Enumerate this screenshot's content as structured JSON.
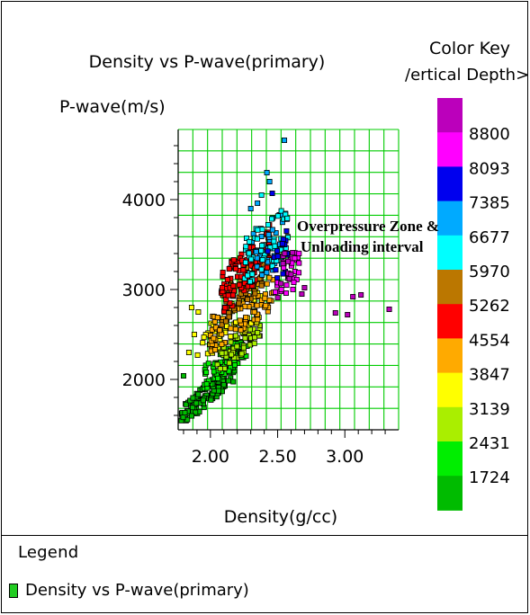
{
  "chart_data": {
    "type": "scatter",
    "title": "Density vs P-wave(primary)",
    "xlabel": "Density(g/cc)",
    "ylabel": "P-wave(m/s)",
    "xlim": [
      1.76,
      3.4
    ],
    "ylim": [
      1440,
      4780
    ],
    "x_ticks": [
      "2.00",
      "2.50",
      "3.00"
    ],
    "x_tick_values": [
      2.0,
      2.5,
      3.0
    ],
    "y_ticks": [
      "2000",
      "3000",
      "4000"
    ],
    "y_tick_values": [
      2000,
      3000,
      4000
    ],
    "grid": true,
    "grid_color": "#00cc00",
    "color_key": {
      "title": "Color Key",
      "subtitle": "/ertical Depth>(f",
      "labels": [
        "8800",
        "8093",
        "7385",
        "6677",
        "5970",
        "5262",
        "4554",
        "3847",
        "3139",
        "2431",
        "1724"
      ],
      "colors": [
        "#bb00bb",
        "#ff00ff",
        "#0000ee",
        "#00aaff",
        "#00ffff",
        "#bb7700",
        "#ff0000",
        "#ffaa00",
        "#ffff00",
        "#aaee00",
        "#00ee00",
        "#00bb00"
      ]
    },
    "annotation": {
      "line1": "Overpressure Zone &",
      "line2": "Unloading interval"
    },
    "clusters": [
      {
        "color": "#00bb00",
        "n": 130,
        "x_range": [
          1.78,
          2.18
        ],
        "y_base": 1580,
        "slope": 1300,
        "spread": 120
      },
      {
        "color": "#00ee00",
        "n": 80,
        "x_range": [
          1.95,
          2.3
        ],
        "y_base": 2000,
        "slope": 1200,
        "spread": 140
      },
      {
        "color": "#aaee00",
        "n": 60,
        "x_range": [
          2.05,
          2.38
        ],
        "y_base": 2200,
        "slope": 1250,
        "spread": 150
      },
      {
        "color": "#ffff00",
        "n": 65,
        "x_range": [
          1.9,
          2.38
        ],
        "y_base": 2350,
        "slope": 1100,
        "spread": 220
      },
      {
        "color": "#ffaa00",
        "n": 85,
        "x_range": [
          2.0,
          2.48
        ],
        "y_base": 2500,
        "slope": 1100,
        "spread": 220
      },
      {
        "color": "#bb7700",
        "n": 55,
        "x_range": [
          2.08,
          2.4
        ],
        "y_base": 2800,
        "slope": 1400,
        "spread": 220
      },
      {
        "color": "#ff0000",
        "n": 110,
        "x_range": [
          2.08,
          2.45
        ],
        "y_base": 2950,
        "slope": 1500,
        "spread": 260
      },
      {
        "color": "#00aaff",
        "n": 35,
        "x_range": [
          2.3,
          2.56
        ],
        "y_base": 3350,
        "slope": 1000,
        "spread": 300
      },
      {
        "color": "#00ffff",
        "n": 60,
        "x_range": [
          2.25,
          2.58
        ],
        "y_base": 3300,
        "slope": 1100,
        "spread": 280
      },
      {
        "color": "#0000ee",
        "n": 18,
        "x_range": [
          2.4,
          2.6
        ],
        "y_base": 3300,
        "slope": 900,
        "spread": 260
      },
      {
        "color": "#ff00ff",
        "n": 30,
        "x_range": [
          2.48,
          2.66
        ],
        "y_base": 3050,
        "slope": 1200,
        "spread": 220
      },
      {
        "color": "#bb00bb",
        "n": 10,
        "x_range": [
          2.5,
          2.64
        ],
        "y_base": 3150,
        "slope": 1000,
        "spread": 250
      }
    ],
    "points": [
      {
        "x": 2.55,
        "y": 4660,
        "color": "#00aaff"
      },
      {
        "x": 2.42,
        "y": 4300,
        "color": "#00aaff"
      },
      {
        "x": 2.44,
        "y": 4200,
        "color": "#00aaff"
      },
      {
        "x": 2.38,
        "y": 4050,
        "color": "#00ffff"
      },
      {
        "x": 2.35,
        "y": 3960,
        "color": "#00aaff"
      },
      {
        "x": 2.3,
        "y": 3900,
        "color": "#00aaff"
      },
      {
        "x": 2.46,
        "y": 4070,
        "color": "#0000ee"
      },
      {
        "x": 2.7,
        "y": 3020,
        "color": "#bb00bb"
      },
      {
        "x": 2.68,
        "y": 2950,
        "color": "#bb00bb"
      },
      {
        "x": 2.93,
        "y": 2740,
        "color": "#bb00bb"
      },
      {
        "x": 3.02,
        "y": 2720,
        "color": "#bb00bb"
      },
      {
        "x": 3.06,
        "y": 2920,
        "color": "#bb00bb"
      },
      {
        "x": 3.12,
        "y": 2940,
        "color": "#bb00bb"
      },
      {
        "x": 3.33,
        "y": 2780,
        "color": "#bb00bb"
      },
      {
        "x": 2.62,
        "y": 3080,
        "color": "#ff00ff"
      },
      {
        "x": 1.86,
        "y": 2800,
        "color": "#ffff00"
      },
      {
        "x": 1.91,
        "y": 2750,
        "color": "#ffff00"
      },
      {
        "x": 1.88,
        "y": 2500,
        "color": "#ffff00"
      },
      {
        "x": 1.84,
        "y": 2300,
        "color": "#ffff00"
      },
      {
        "x": 1.8,
        "y": 2040,
        "color": "#00bb00"
      },
      {
        "x": 1.81,
        "y": 1630,
        "color": "#00bb00"
      }
    ]
  },
  "legend": {
    "title": "Legend",
    "item_label": "Density vs P-wave(primary)"
  }
}
